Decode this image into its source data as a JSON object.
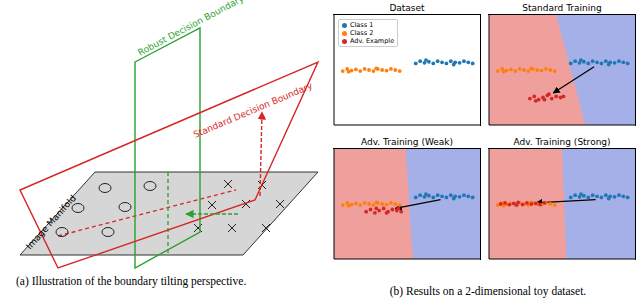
{
  "figure_a": {
    "labels": {
      "manifold": "Image Manifold",
      "robust": "Robust Decision Boundary",
      "standard": "Standard Decision Boundary"
    },
    "caption": "(a) Illustration of the boundary tilting perspective."
  },
  "caption_b": "(b) Results on a 2-dimensional toy dataset.",
  "chart_data": [
    {
      "type": "scatter",
      "title": "Dataset",
      "xlim": [
        0,
        10
      ],
      "ylim": [
        0,
        10
      ],
      "tick_labels": false,
      "legend": "upper left",
      "marker": "circle",
      "series": [
        {
          "name": "Class 1",
          "color": "#1f77b4",
          "values": [
            [
              5.6,
              5.6
            ],
            [
              5.9,
              5.8
            ],
            [
              6.2,
              5.65
            ],
            [
              6.5,
              5.75
            ],
            [
              6.8,
              5.6
            ],
            [
              7.1,
              5.8
            ],
            [
              7.4,
              5.7
            ],
            [
              7.7,
              5.6
            ],
            [
              8.0,
              5.8
            ],
            [
              8.3,
              5.7
            ],
            [
              8.6,
              5.65
            ],
            [
              8.9,
              5.8
            ],
            [
              9.2,
              5.7
            ],
            [
              9.5,
              5.6
            ],
            [
              6.3,
              5.9
            ],
            [
              8.2,
              5.5
            ]
          ]
        },
        {
          "name": "Class 2",
          "color": "#ff7f0e",
          "values": [
            [
              0.6,
              4.9
            ],
            [
              0.9,
              5.1
            ],
            [
              1.2,
              4.95
            ],
            [
              1.5,
              5.05
            ],
            [
              1.8,
              4.9
            ],
            [
              2.1,
              5.1
            ],
            [
              2.4,
              5.0
            ],
            [
              2.7,
              4.9
            ],
            [
              3.0,
              5.1
            ],
            [
              3.3,
              5.0
            ],
            [
              3.6,
              4.95
            ],
            [
              3.9,
              5.1
            ],
            [
              4.2,
              5.0
            ],
            [
              4.5,
              4.9
            ],
            [
              1.0,
              4.85
            ],
            [
              2.9,
              5.15
            ]
          ]
        },
        {
          "name": "Adv. Example",
          "color": "#d62728",
          "values": []
        }
      ]
    },
    {
      "type": "scatter",
      "title": "Standard Training",
      "xlim": [
        0,
        10
      ],
      "ylim": [
        0,
        10
      ],
      "tick_labels": false,
      "marker": "circle",
      "decision_boundary": [
        [
          6.6,
          0
        ],
        [
          4.6,
          10
        ]
      ],
      "arrow": [
        [
          7.2,
          5.3
        ],
        [
          4.4,
          2.9
        ]
      ],
      "series": [
        {
          "name": "Class 1",
          "color": "#1f77b4",
          "values": [
            [
              5.6,
              5.6
            ],
            [
              5.9,
              5.8
            ],
            [
              6.2,
              5.65
            ],
            [
              6.5,
              5.75
            ],
            [
              6.8,
              5.6
            ],
            [
              7.1,
              5.8
            ],
            [
              7.4,
              5.7
            ],
            [
              7.7,
              5.6
            ],
            [
              8.0,
              5.8
            ],
            [
              8.3,
              5.7
            ],
            [
              8.6,
              5.65
            ],
            [
              8.9,
              5.8
            ],
            [
              9.2,
              5.7
            ],
            [
              9.5,
              5.6
            ],
            [
              6.3,
              5.9
            ],
            [
              8.2,
              5.5
            ]
          ]
        },
        {
          "name": "Class 2",
          "color": "#ff7f0e",
          "values": [
            [
              0.6,
              4.9
            ],
            [
              0.9,
              5.1
            ],
            [
              1.2,
              4.95
            ],
            [
              1.5,
              5.05
            ],
            [
              1.8,
              4.9
            ],
            [
              2.1,
              5.1
            ],
            [
              2.4,
              5.0
            ],
            [
              2.7,
              4.9
            ],
            [
              3.0,
              5.1
            ],
            [
              3.3,
              5.0
            ],
            [
              3.6,
              4.95
            ],
            [
              3.9,
              5.1
            ],
            [
              4.2,
              5.0
            ],
            [
              4.5,
              4.9
            ],
            [
              1.0,
              4.85
            ],
            [
              2.9,
              5.15
            ]
          ]
        },
        {
          "name": "Adv. Example",
          "color": "#d62728",
          "values": [
            [
              2.8,
              2.4
            ],
            [
              3.1,
              2.6
            ],
            [
              3.4,
              2.3
            ],
            [
              3.7,
              2.5
            ],
            [
              4.0,
              2.7
            ],
            [
              4.3,
              2.4
            ],
            [
              4.6,
              2.6
            ],
            [
              4.9,
              2.5
            ],
            [
              3.2,
              2.2
            ],
            [
              4.1,
              2.8
            ],
            [
              5.1,
              2.6
            ],
            [
              3.8,
              2.3
            ]
          ]
        }
      ]
    },
    {
      "type": "scatter",
      "title": "Adv. Training (Weak)",
      "xlim": [
        0,
        10
      ],
      "ylim": [
        0,
        10
      ],
      "tick_labels": false,
      "marker": "circle",
      "decision_boundary": [
        [
          5.4,
          0
        ],
        [
          4.9,
          10
        ]
      ],
      "arrow": [
        [
          7.3,
          5.4
        ],
        [
          4.2,
          4.6
        ]
      ],
      "series": [
        {
          "name": "Class 1",
          "color": "#1f77b4",
          "values": [
            [
              5.6,
              5.6
            ],
            [
              5.9,
              5.8
            ],
            [
              6.2,
              5.65
            ],
            [
              6.5,
              5.75
            ],
            [
              6.8,
              5.6
            ],
            [
              7.1,
              5.8
            ],
            [
              7.4,
              5.7
            ],
            [
              7.7,
              5.6
            ],
            [
              8.0,
              5.8
            ],
            [
              8.3,
              5.7
            ],
            [
              8.6,
              5.65
            ],
            [
              8.9,
              5.8
            ],
            [
              9.2,
              5.7
            ],
            [
              9.5,
              5.6
            ],
            [
              6.3,
              5.9
            ],
            [
              8.2,
              5.5
            ]
          ]
        },
        {
          "name": "Class 2",
          "color": "#ff7f0e",
          "values": [
            [
              0.6,
              4.9
            ],
            [
              0.9,
              5.1
            ],
            [
              1.2,
              4.95
            ],
            [
              1.5,
              5.05
            ],
            [
              1.8,
              4.9
            ],
            [
              2.1,
              5.1
            ],
            [
              2.4,
              5.0
            ],
            [
              2.7,
              4.9
            ],
            [
              3.0,
              5.1
            ],
            [
              3.3,
              5.0
            ],
            [
              3.6,
              4.95
            ],
            [
              3.9,
              5.1
            ],
            [
              4.2,
              5.0
            ],
            [
              4.5,
              4.9
            ],
            [
              1.0,
              4.85
            ],
            [
              2.9,
              5.15
            ]
          ]
        },
        {
          "name": "Adv. Example",
          "color": "#d62728",
          "values": [
            [
              2.2,
              4.3
            ],
            [
              2.5,
              4.5
            ],
            [
              2.8,
              4.2
            ],
            [
              3.1,
              4.4
            ],
            [
              3.4,
              4.6
            ],
            [
              3.7,
              4.3
            ],
            [
              4.0,
              4.5
            ],
            [
              4.3,
              4.4
            ],
            [
              4.6,
              4.3
            ],
            [
              2.9,
              4.6
            ],
            [
              3.6,
              4.2
            ],
            [
              4.4,
              4.6
            ]
          ]
        }
      ]
    },
    {
      "type": "scatter",
      "title": "Adv. Training (Strong)",
      "xlim": [
        0,
        10
      ],
      "ylim": [
        0,
        10
      ],
      "tick_labels": false,
      "marker": "circle",
      "decision_boundary": [
        [
          5.3,
          0
        ],
        [
          5.0,
          10
        ]
      ],
      "arrow": [
        [
          7.3,
          5.4
        ],
        [
          3.2,
          5.1
        ]
      ],
      "series": [
        {
          "name": "Class 1",
          "color": "#1f77b4",
          "values": [
            [
              5.6,
              5.6
            ],
            [
              5.9,
              5.8
            ],
            [
              6.2,
              5.65
            ],
            [
              6.5,
              5.75
            ],
            [
              6.8,
              5.6
            ],
            [
              7.1,
              5.8
            ],
            [
              7.4,
              5.7
            ],
            [
              7.7,
              5.6
            ],
            [
              8.0,
              5.8
            ],
            [
              8.3,
              5.7
            ],
            [
              8.6,
              5.65
            ],
            [
              8.9,
              5.8
            ],
            [
              9.2,
              5.7
            ],
            [
              9.5,
              5.6
            ],
            [
              6.3,
              5.9
            ],
            [
              8.2,
              5.5
            ]
          ]
        },
        {
          "name": "Class 2",
          "color": "#ff7f0e",
          "values": [
            [
              0.6,
              4.9
            ],
            [
              0.9,
              5.1
            ],
            [
              1.2,
              4.95
            ],
            [
              1.5,
              5.05
            ],
            [
              1.8,
              4.9
            ],
            [
              2.1,
              5.1
            ],
            [
              2.4,
              5.0
            ],
            [
              2.7,
              4.9
            ],
            [
              3.0,
              5.1
            ],
            [
              3.3,
              5.0
            ],
            [
              3.6,
              4.95
            ],
            [
              3.9,
              5.1
            ],
            [
              4.2,
              5.0
            ],
            [
              4.5,
              4.9
            ],
            [
              1.0,
              4.85
            ],
            [
              2.9,
              5.15
            ]
          ]
        },
        {
          "name": "Adv. Example",
          "color": "#d62728",
          "values": [
            [
              0.8,
              5.0
            ],
            [
              1.1,
              5.1
            ],
            [
              1.4,
              4.95
            ],
            [
              1.7,
              5.05
            ],
            [
              2.0,
              5.15
            ],
            [
              2.3,
              4.95
            ],
            [
              2.6,
              5.1
            ],
            [
              2.9,
              5.0
            ],
            [
              3.2,
              5.05
            ],
            [
              3.5,
              4.95
            ],
            [
              3.8,
              5.1
            ],
            [
              1.9,
              4.9
            ]
          ]
        }
      ]
    }
  ]
}
